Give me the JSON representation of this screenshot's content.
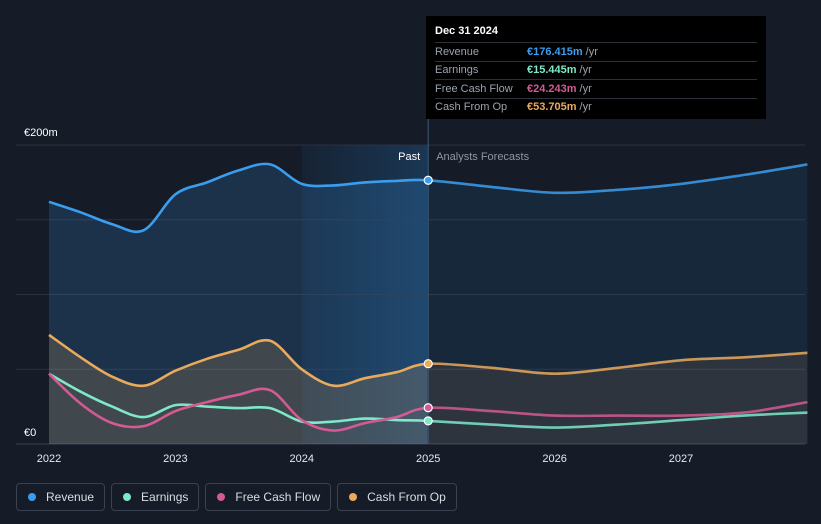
{
  "chart_data": {
    "type": "line",
    "currency_unit": "€m",
    "y_label_top": "€200m",
    "y_label_bottom": "€0",
    "ylim": [
      0,
      200
    ],
    "xlim": [
      2022,
      2028
    ],
    "x_ticks": [
      "2022",
      "2023",
      "2024",
      "2025",
      "2026",
      "2027"
    ],
    "x_tick_values": [
      2022,
      2023,
      2024,
      2025,
      2026,
      2027
    ],
    "divider_x": 2025,
    "highlight_start": 2024,
    "past_label": "Past",
    "forecast_label": "Analysts Forecasts",
    "series": [
      {
        "name": "Revenue",
        "color": "#3b9ded",
        "fill": true,
        "x": [
          2022,
          2022.25,
          2022.5,
          2022.75,
          2023,
          2023.25,
          2023.5,
          2023.75,
          2024,
          2024.25,
          2024.5,
          2024.75,
          2025,
          2025.5,
          2026,
          2026.5,
          2027,
          2027.5,
          2028
        ],
        "values": [
          162,
          155,
          147,
          143,
          167,
          175,
          183,
          187,
          174,
          173,
          175,
          176,
          176.415,
          172,
          168,
          170,
          174,
          180,
          187
        ]
      },
      {
        "name": "Earnings",
        "color": "#7ee8c9",
        "fill": false,
        "x": [
          2022,
          2022.25,
          2022.5,
          2022.75,
          2023,
          2023.25,
          2023.5,
          2023.75,
          2024,
          2024.25,
          2024.5,
          2024.75,
          2025,
          2025.5,
          2026,
          2026.5,
          2027,
          2027.5,
          2028
        ],
        "values": [
          47,
          35,
          25,
          18,
          26,
          25,
          24,
          24,
          15,
          15,
          17,
          16,
          15.445,
          13,
          11,
          13,
          16,
          19,
          21
        ]
      },
      {
        "name": "Free Cash Flow",
        "color": "#d35a93",
        "fill": false,
        "x": [
          2022,
          2022.25,
          2022.5,
          2022.75,
          2023,
          2023.25,
          2023.5,
          2023.75,
          2024,
          2024.25,
          2024.5,
          2024.75,
          2025,
          2025.5,
          2026,
          2026.5,
          2027,
          2027.5,
          2028
        ],
        "values": [
          47,
          27,
          14,
          12,
          22,
          28,
          33,
          36,
          16,
          9,
          14,
          18,
          24.243,
          22,
          19,
          19,
          19,
          21,
          28
        ]
      },
      {
        "name": "Cash From Op",
        "color": "#e9aa5c",
        "fill": true,
        "x": [
          2022,
          2022.25,
          2022.5,
          2022.75,
          2023,
          2023.25,
          2023.5,
          2023.75,
          2024,
          2024.25,
          2024.5,
          2024.75,
          2025,
          2025.5,
          2026,
          2026.5,
          2027,
          2027.5,
          2028
        ],
        "values": [
          73,
          58,
          45,
          39,
          49,
          57,
          63,
          69,
          50,
          39,
          44,
          48,
          53.705,
          51,
          47,
          51,
          56,
          58,
          61
        ]
      }
    ]
  },
  "tooltip": {
    "date": "Dec 31 2024",
    "unit": "/yr",
    "rows": [
      {
        "label": "Revenue",
        "value": "€176.415m",
        "color": "#3b9ded"
      },
      {
        "label": "Earnings",
        "value": "€15.445m",
        "color": "#7ee8c9"
      },
      {
        "label": "Free Cash Flow",
        "value": "€24.243m",
        "color": "#d35a93"
      },
      {
        "label": "Cash From Op",
        "value": "€53.705m",
        "color": "#e9aa5c"
      }
    ]
  },
  "legend": [
    {
      "label": "Revenue",
      "color": "#3b9ded"
    },
    {
      "label": "Earnings",
      "color": "#7ee8c9"
    },
    {
      "label": "Free Cash Flow",
      "color": "#d35a93"
    },
    {
      "label": "Cash From Op",
      "color": "#e9aa5c"
    }
  ]
}
